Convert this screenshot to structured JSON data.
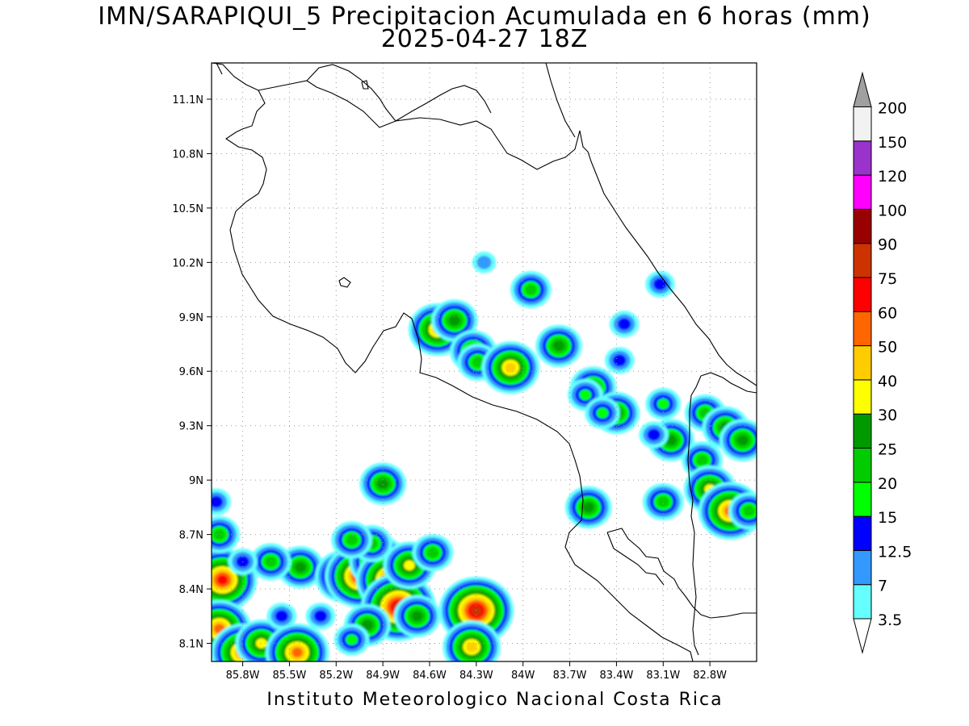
{
  "map": {
    "title": "IMN/SARAPIQUI_5 Precipitacion Acumulada en 6 horas (mm)",
    "subtitle": "2025-04-27 18Z",
    "footer": "Instituto Meteorologico Nacional Costa Rica",
    "extent": {
      "lon_min": -86.0,
      "lon_max": -82.5,
      "lat_min": 8.0,
      "lat_max": 11.3
    },
    "lon_ticks": [
      {
        "value": -85.8,
        "label": "85.8W"
      },
      {
        "value": -85.5,
        "label": "85.5W"
      },
      {
        "value": -85.2,
        "label": "85.2W"
      },
      {
        "value": -84.9,
        "label": "84.9W"
      },
      {
        "value": -84.6,
        "label": "84.6W"
      },
      {
        "value": -84.3,
        "label": "84.3W"
      },
      {
        "value": -84.0,
        "label": "84W"
      },
      {
        "value": -83.7,
        "label": "83.7W"
      },
      {
        "value": -83.4,
        "label": "83.4W"
      },
      {
        "value": -83.1,
        "label": "83.1W"
      },
      {
        "value": -82.8,
        "label": "82.8W"
      }
    ],
    "lat_ticks": [
      {
        "value": 8.1,
        "label": "8.1N"
      },
      {
        "value": 8.4,
        "label": "8.4N"
      },
      {
        "value": 8.7,
        "label": "8.7N"
      },
      {
        "value": 9.0,
        "label": "9N"
      },
      {
        "value": 9.3,
        "label": "9.3N"
      },
      {
        "value": 9.6,
        "label": "9.6N"
      },
      {
        "value": 9.9,
        "label": "9.9N"
      },
      {
        "value": 10.2,
        "label": "10.2N"
      },
      {
        "value": 10.5,
        "label": "10.5N"
      },
      {
        "value": 10.8,
        "label": "10.8N"
      },
      {
        "value": 11.1,
        "label": "11.1N"
      }
    ],
    "grid": "dotted"
  },
  "legend": {
    "unit": "mm",
    "levels": [
      {
        "label": "3.5",
        "color": "#66ffff"
      },
      {
        "label": "7",
        "color": "#3399ff"
      },
      {
        "label": "12.5",
        "color": "#0000ff"
      },
      {
        "label": "15",
        "color": "#00ff00"
      },
      {
        "label": "20",
        "color": "#00cc00"
      },
      {
        "label": "25",
        "color": "#009900"
      },
      {
        "label": "30",
        "color": "#ffff00"
      },
      {
        "label": "40",
        "color": "#ffcc00"
      },
      {
        "label": "50",
        "color": "#ff6600"
      },
      {
        "label": "60",
        "color": "#ff0000"
      },
      {
        "label": "75",
        "color": "#cc3300"
      },
      {
        "label": "90",
        "color": "#990000"
      },
      {
        "label": "100",
        "color": "#ff00ff"
      },
      {
        "label": "120",
        "color": "#9933cc"
      },
      {
        "label": "150",
        "color": "#f2f2f2"
      },
      {
        "label": "200",
        "color": null
      }
    ],
    "over_color": "#a0a0a0",
    "under_color": "#ffffff"
  },
  "precip_cells": [
    {
      "lon": -84.55,
      "lat": 9.83,
      "peak": 40
    },
    {
      "lon": -84.44,
      "lat": 9.88,
      "peak": 25
    },
    {
      "lon": -84.32,
      "lat": 9.71,
      "peak": 25
    },
    {
      "lon": -84.29,
      "lat": 9.65,
      "peak": 20
    },
    {
      "lon": -84.08,
      "lat": 9.62,
      "peak": 40
    },
    {
      "lon": -83.77,
      "lat": 9.74,
      "peak": 25
    },
    {
      "lon": -83.55,
      "lat": 9.51,
      "peak": 25
    },
    {
      "lon": -83.6,
      "lat": 9.47,
      "peak": 15
    },
    {
      "lon": -83.4,
      "lat": 9.37,
      "peak": 25
    },
    {
      "lon": -83.49,
      "lat": 9.37,
      "peak": 15
    },
    {
      "lon": -83.35,
      "lat": 9.86,
      "peak": 12.5
    },
    {
      "lon": -83.1,
      "lat": 9.42,
      "peak": 15
    },
    {
      "lon": -83.05,
      "lat": 9.22,
      "peak": 25
    },
    {
      "lon": -82.83,
      "lat": 9.37,
      "peak": 20
    },
    {
      "lon": -82.7,
      "lat": 9.29,
      "peak": 25
    },
    {
      "lon": -82.59,
      "lat": 9.22,
      "peak": 25
    },
    {
      "lon": -82.85,
      "lat": 9.11,
      "peak": 20
    },
    {
      "lon": -82.8,
      "lat": 8.95,
      "peak": 30
    },
    {
      "lon": -82.67,
      "lat": 8.83,
      "peak": 50
    },
    {
      "lon": -82.55,
      "lat": 8.83,
      "peak": 20
    },
    {
      "lon": -83.1,
      "lat": 8.88,
      "peak": 20
    },
    {
      "lon": -83.58,
      "lat": 8.85,
      "peak": 25
    },
    {
      "lon": -84.25,
      "lat": 10.2,
      "peak": 7
    },
    {
      "lon": -83.95,
      "lat": 10.05,
      "peak": 20
    },
    {
      "lon": -83.38,
      "lat": 9.66,
      "peak": 12.5
    },
    {
      "lon": -83.16,
      "lat": 9.25,
      "peak": 12.5
    },
    {
      "lon": -83.12,
      "lat": 10.08,
      "peak": 12.5
    },
    {
      "lon": -85.93,
      "lat": 8.45,
      "peak": 60
    },
    {
      "lon": -85.95,
      "lat": 8.18,
      "peak": 50
    },
    {
      "lon": -85.8,
      "lat": 8.05,
      "peak": 50
    },
    {
      "lon": -85.68,
      "lat": 8.1,
      "peak": 30
    },
    {
      "lon": -85.45,
      "lat": 8.05,
      "peak": 50
    },
    {
      "lon": -85.43,
      "lat": 8.52,
      "peak": 25
    },
    {
      "lon": -85.15,
      "lat": 8.47,
      "peak": 40
    },
    {
      "lon": -85.05,
      "lat": 8.47,
      "peak": 60
    },
    {
      "lon": -84.93,
      "lat": 8.55,
      "peak": 40
    },
    {
      "lon": -84.85,
      "lat": 8.45,
      "peak": 60
    },
    {
      "lon": -84.8,
      "lat": 8.3,
      "peak": 75
    },
    {
      "lon": -84.73,
      "lat": 8.53,
      "peak": 30
    },
    {
      "lon": -84.68,
      "lat": 8.25,
      "peak": 25
    },
    {
      "lon": -84.58,
      "lat": 8.6,
      "peak": 20
    },
    {
      "lon": -85.0,
      "lat": 8.2,
      "peak": 25
    },
    {
      "lon": -84.3,
      "lat": 8.28,
      "peak": 75
    },
    {
      "lon": -84.33,
      "lat": 8.08,
      "peak": 40
    },
    {
      "lon": -84.97,
      "lat": 8.65,
      "peak": 20
    },
    {
      "lon": -85.1,
      "lat": 8.67,
      "peak": 20
    },
    {
      "lon": -84.9,
      "lat": 8.98,
      "peak": 25
    },
    {
      "lon": -85.62,
      "lat": 8.55,
      "peak": 20
    },
    {
      "lon": -85.8,
      "lat": 8.55,
      "peak": 12.5
    },
    {
      "lon": -85.55,
      "lat": 8.25,
      "peak": 12.5
    },
    {
      "lon": -85.3,
      "lat": 8.25,
      "peak": 12.5
    },
    {
      "lon": -85.1,
      "lat": 8.12,
      "peak": 15
    },
    {
      "lon": -85.95,
      "lat": 8.7,
      "peak": 20
    },
    {
      "lon": -85.97,
      "lat": 8.88,
      "peak": 12.5
    }
  ]
}
